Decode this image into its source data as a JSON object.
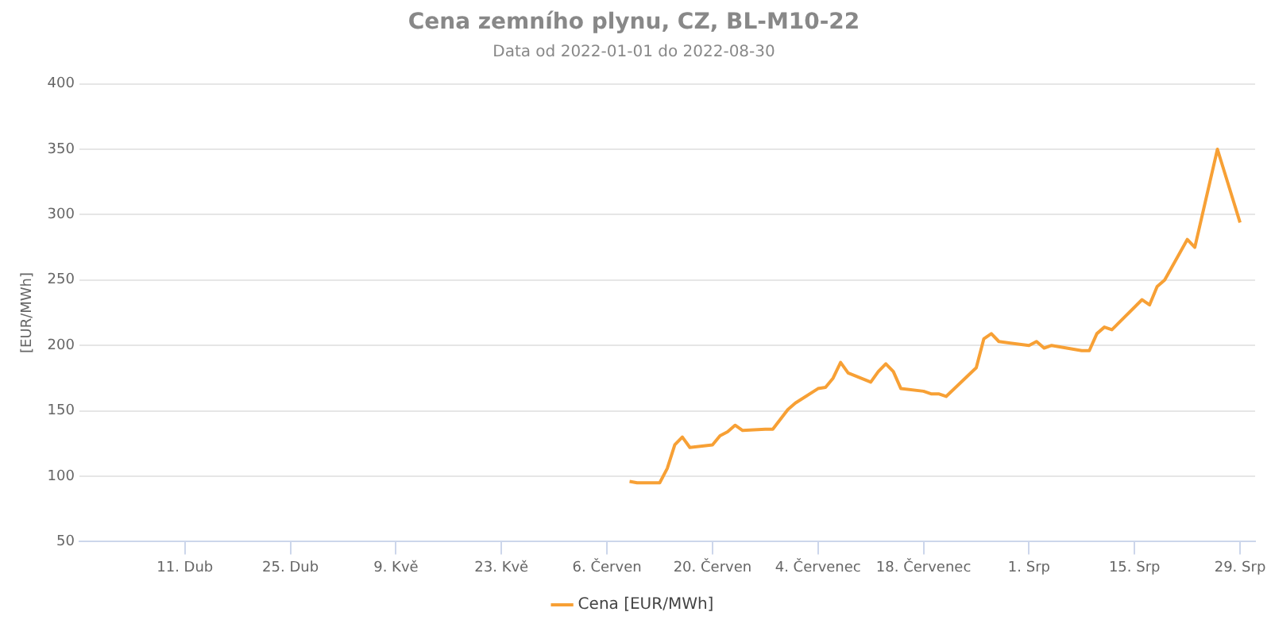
{
  "chart_data": {
    "type": "line",
    "title": "Cena zemního plynu, CZ, BL-M10-22",
    "subtitle": "Data od 2022-01-01 do 2022-08-30",
    "ylabel": "[EUR/MWh]",
    "x": [
      "2022-06-09",
      "2022-06-10",
      "2022-06-13",
      "2022-06-14",
      "2022-06-15",
      "2022-06-16",
      "2022-06-17",
      "2022-06-20",
      "2022-06-21",
      "2022-06-22",
      "2022-06-23",
      "2022-06-24",
      "2022-06-27",
      "2022-06-28",
      "2022-06-30",
      "2022-07-01",
      "2022-07-04",
      "2022-07-05",
      "2022-07-06",
      "2022-07-07",
      "2022-07-08",
      "2022-07-11",
      "2022-07-12",
      "2022-07-13",
      "2022-07-14",
      "2022-07-15",
      "2022-07-18",
      "2022-07-19",
      "2022-07-20",
      "2022-07-21",
      "2022-07-25",
      "2022-07-26",
      "2022-07-27",
      "2022-07-28",
      "2022-08-01",
      "2022-08-02",
      "2022-08-03",
      "2022-08-04",
      "2022-08-08",
      "2022-08-09",
      "2022-08-10",
      "2022-08-11",
      "2022-08-12",
      "2022-08-16",
      "2022-08-17",
      "2022-08-18",
      "2022-08-19",
      "2022-08-22",
      "2022-08-23",
      "2022-08-26",
      "2022-08-29"
    ],
    "series": [
      {
        "name": "Cena [EUR/MWh]",
        "color": "#f7a035",
        "values": [
          96,
          95,
          95,
          106,
          124,
          130,
          122,
          124,
          131,
          134,
          139,
          135,
          136,
          136,
          151,
          156,
          167,
          168,
          175,
          187,
          179,
          172,
          180,
          186,
          180,
          167,
          165,
          163,
          163,
          161,
          183,
          205,
          209,
          203,
          200,
          203,
          198,
          200,
          196,
          196,
          209,
          214,
          212,
          235,
          231,
          245,
          250,
          281,
          275,
          350,
          294
        ]
      }
    ],
    "xlim": [
      "2022-03-28",
      "2022-08-31"
    ],
    "xticks": [
      {
        "value": "2022-04-11",
        "label": "11. Dub"
      },
      {
        "value": "2022-04-25",
        "label": "25. Dub"
      },
      {
        "value": "2022-05-09",
        "label": "9. Kvě"
      },
      {
        "value": "2022-05-23",
        "label": "23. Kvě"
      },
      {
        "value": "2022-06-06",
        "label": "6. Červen"
      },
      {
        "value": "2022-06-20",
        "label": "20. Červen"
      },
      {
        "value": "2022-07-04",
        "label": "4. Červenec"
      },
      {
        "value": "2022-07-18",
        "label": "18. Červenec"
      },
      {
        "value": "2022-08-01",
        "label": "1. Srp"
      },
      {
        "value": "2022-08-15",
        "label": "15. Srp"
      },
      {
        "value": "2022-08-29",
        "label": "29. Srp"
      }
    ],
    "ylim": [
      50,
      400
    ],
    "yticks": [
      50,
      100,
      150,
      200,
      250,
      300,
      350,
      400
    ],
    "grid": "y",
    "legend": "bottom",
    "marker": "none",
    "line_style": "solid"
  }
}
